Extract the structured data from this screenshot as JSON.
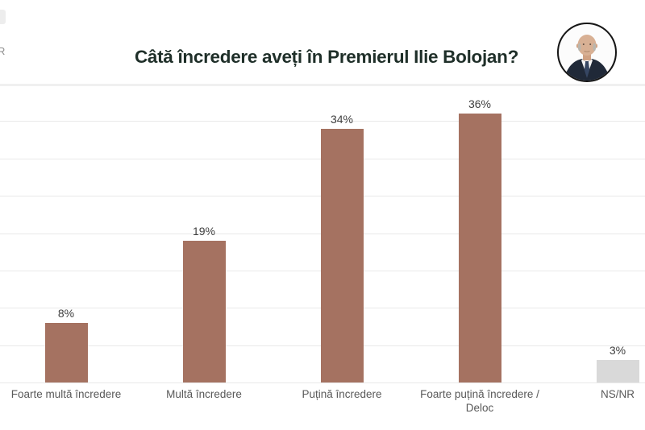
{
  "header": {
    "title": "Câtă încredere aveți în Premierul Ilie Bolojan?",
    "watermark": "R",
    "portrait_icon": "bolojan-portrait-photo"
  },
  "chart_data": {
    "type": "bar",
    "title": "Câtă încredere aveți în Premierul Ilie Bolojan?",
    "categories": [
      "Foarte multă încredere",
      "Multă încredere",
      "Puțină încredere",
      "Foarte puțină încredere / Deloc",
      "NS/NR"
    ],
    "values": [
      8,
      19,
      34,
      36,
      3
    ],
    "value_labels": [
      "8%",
      "19%",
      "34%",
      "36%",
      "3%"
    ],
    "bar_colors": [
      "#a57261",
      "#a57261",
      "#a57261",
      "#a57261",
      "#d9d9d9"
    ],
    "ylim": [
      0,
      40
    ],
    "grid_step": 5,
    "grid": "horizontal",
    "legend": "none",
    "xlabel": "",
    "ylabel": ""
  },
  "colors": {
    "bar_main": "#a57261",
    "bar_nsnr": "#d9d9d9",
    "title_text": "#1f2f29",
    "value_label_text": "#3f3f3f",
    "axis_label_text": "#595959",
    "gridline": "#e9e9e9",
    "background": "#ffffff"
  }
}
